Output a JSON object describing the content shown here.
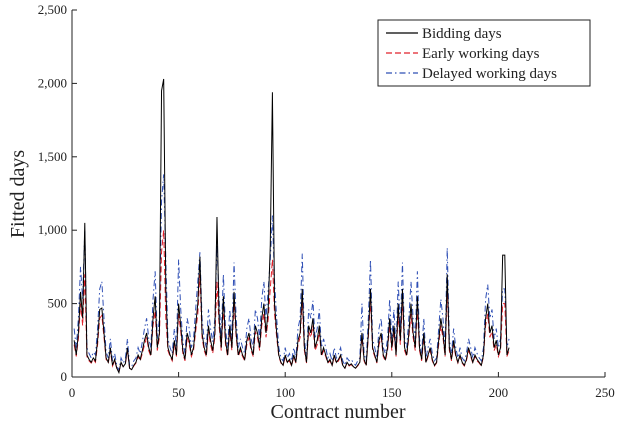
{
  "chart_data": {
    "type": "line",
    "xlabel": "Contract number",
    "ylabel": "Fitted days",
    "xlim": [
      0,
      250
    ],
    "xticks": [
      0,
      50,
      100,
      150,
      200,
      250
    ],
    "ylim": [
      0,
      2500
    ],
    "yticks": [
      0,
      500,
      {
        "value": 1000,
        "label": "1,000"
      },
      {
        "value": 1500,
        "label": "1,500"
      },
      {
        "value": 2000,
        "label": "2,000"
      },
      {
        "value": 2500,
        "label": "2,500"
      }
    ],
    "legend": "upper right",
    "x": [
      1,
      2,
      3,
      4,
      5,
      6,
      7,
      8,
      9,
      10,
      11,
      12,
      13,
      14,
      15,
      16,
      17,
      18,
      19,
      20,
      21,
      22,
      23,
      24,
      25,
      26,
      27,
      28,
      29,
      30,
      31,
      32,
      33,
      34,
      35,
      36,
      37,
      38,
      39,
      40,
      41,
      42,
      43,
      44,
      45,
      46,
      47,
      48,
      49,
      50,
      51,
      52,
      53,
      54,
      55,
      56,
      57,
      58,
      59,
      60,
      61,
      62,
      63,
      64,
      65,
      66,
      67,
      68,
      69,
      70,
      71,
      72,
      73,
      74,
      75,
      76,
      77,
      78,
      79,
      80,
      81,
      82,
      83,
      84,
      85,
      86,
      87,
      88,
      89,
      90,
      91,
      92,
      93,
      94,
      95,
      96,
      97,
      98,
      99,
      100,
      101,
      102,
      103,
      104,
      105,
      106,
      107,
      108,
      109,
      110,
      111,
      112,
      113,
      114,
      115,
      116,
      117,
      118,
      119,
      120,
      121,
      122,
      123,
      124,
      125,
      126,
      127,
      128,
      129,
      130,
      131,
      132,
      133,
      134,
      135,
      136,
      137,
      138,
      139,
      140,
      141,
      142,
      143,
      144,
      145,
      146,
      147,
      148,
      149,
      150,
      151,
      152,
      153,
      154,
      155,
      156,
      157,
      158,
      159,
      160,
      161,
      162,
      163,
      164,
      165,
      166,
      167,
      168,
      169,
      170,
      171,
      172,
      173,
      174,
      175,
      176,
      177,
      178,
      179,
      180,
      181,
      182,
      183,
      184,
      185,
      186,
      187,
      188,
      189,
      190,
      191,
      192,
      193,
      194,
      195,
      196,
      197,
      198,
      199,
      200,
      201,
      202,
      203,
      204,
      205
    ],
    "series": [
      {
        "name": "Bidding days",
        "color": "#000000",
        "dash": "solid",
        "values": [
          250,
          150,
          300,
          580,
          400,
          1050,
          150,
          120,
          100,
          130,
          110,
          250,
          460,
          470,
          300,
          130,
          100,
          200,
          80,
          120,
          60,
          30,
          100,
          70,
          90,
          200,
          60,
          50,
          80,
          100,
          150,
          120,
          180,
          250,
          300,
          200,
          150,
          400,
          550,
          200,
          300,
          1950,
          2030,
          600,
          200,
          150,
          120,
          250,
          150,
          500,
          350,
          180,
          120,
          300,
          250,
          150,
          200,
          350,
          500,
          820,
          300,
          200,
          150,
          350,
          250,
          180,
          300,
          1090,
          400,
          200,
          550,
          250,
          150,
          350,
          200,
          580,
          300,
          150,
          200,
          150,
          120,
          250,
          300,
          200,
          150,
          350,
          300,
          200,
          400,
          500,
          300,
          450,
          900,
          1940,
          500,
          300,
          150,
          100,
          80,
          150,
          100,
          120,
          80,
          150,
          100,
          250,
          300,
          600,
          200,
          100,
          350,
          300,
          400,
          200,
          250,
          350,
          150,
          200,
          150,
          100,
          120,
          80,
          150,
          100,
          120,
          150,
          80,
          60,
          100,
          80,
          90,
          70,
          60,
          80,
          100,
          300,
          120,
          80,
          300,
          600,
          200,
          150,
          100,
          250,
          300,
          150,
          120,
          200,
          400,
          200,
          350,
          150,
          500,
          250,
          600,
          200,
          150,
          300,
          500,
          300,
          200,
          550,
          200,
          120,
          300,
          100,
          150,
          200,
          120,
          80,
          100,
          250,
          400,
          300,
          150,
          700,
          200,
          120,
          250,
          150,
          100,
          150,
          100,
          80,
          120,
          200,
          150,
          100,
          150,
          120,
          100,
          80,
          150,
          400,
          500,
          300,
          350,
          200,
          250,
          150,
          200,
          830,
          830,
          150,
          200
        ]
      },
      {
        "name": "Early working days",
        "color": "#e0202a",
        "dash": "dashed",
        "values": [
          220,
          140,
          260,
          500,
          350,
          700,
          140,
          110,
          95,
          120,
          100,
          220,
          400,
          420,
          270,
          120,
          95,
          180,
          75,
          110,
          60,
          35,
          95,
          70,
          85,
          180,
          60,
          50,
          75,
          95,
          140,
          110,
          160,
          220,
          270,
          180,
          140,
          350,
          450,
          180,
          270,
          850,
          1000,
          400,
          180,
          140,
          110,
          220,
          140,
          430,
          310,
          160,
          110,
          270,
          220,
          140,
          180,
          310,
          430,
          700,
          270,
          180,
          140,
          310,
          220,
          160,
          270,
          650,
          350,
          180,
          470,
          220,
          140,
          310,
          180,
          500,
          270,
          140,
          180,
          140,
          110,
          220,
          270,
          180,
          140,
          310,
          270,
          180,
          350,
          430,
          270,
          390,
          600,
          800,
          430,
          270,
          140,
          95,
          75,
          140,
          95,
          110,
          75,
          140,
          95,
          220,
          270,
          520,
          180,
          95,
          310,
          270,
          350,
          180,
          220,
          310,
          140,
          180,
          140,
          95,
          110,
          75,
          140,
          95,
          110,
          140,
          75,
          60,
          95,
          75,
          85,
          65,
          60,
          75,
          95,
          270,
          110,
          75,
          270,
          520,
          180,
          140,
          95,
          220,
          270,
          140,
          110,
          180,
          350,
          180,
          310,
          140,
          430,
          220,
          520,
          180,
          140,
          270,
          430,
          270,
          180,
          470,
          180,
          110,
          270,
          95,
          140,
          180,
          110,
          75,
          95,
          220,
          350,
          270,
          140,
          600,
          180,
          110,
          220,
          140,
          95,
          140,
          95,
          75,
          110,
          180,
          140,
          95,
          140,
          110,
          95,
          75,
          140,
          350,
          430,
          270,
          310,
          180,
          220,
          140,
          180,
          500,
          500,
          140,
          180
        ]
      },
      {
        "name": "Delayed working days",
        "color": "#2f4fb5",
        "dash": "dashdot",
        "values": [
          330,
          200,
          400,
          750,
          530,
          1000,
          200,
          160,
          130,
          170,
          150,
          330,
          600,
          650,
          400,
          170,
          130,
          260,
          110,
          160,
          80,
          45,
          130,
          95,
          120,
          260,
          80,
          70,
          110,
          130,
          200,
          160,
          240,
          330,
          400,
          260,
          200,
          530,
          720,
          260,
          400,
          1200,
          1380,
          800,
          260,
          200,
          160,
          330,
          200,
          800,
          460,
          240,
          160,
          400,
          330,
          200,
          260,
          460,
          650,
          850,
          400,
          260,
          200,
          460,
          330,
          240,
          400,
          900,
          530,
          260,
          700,
          330,
          200,
          460,
          260,
          780,
          400,
          200,
          260,
          200,
          160,
          330,
          400,
          260,
          200,
          460,
          400,
          260,
          530,
          650,
          400,
          590,
          800,
          1100,
          650,
          400,
          200,
          130,
          110,
          200,
          130,
          160,
          110,
          200,
          130,
          330,
          400,
          840,
          260,
          130,
          460,
          400,
          520,
          260,
          330,
          460,
          200,
          260,
          200,
          130,
          160,
          110,
          200,
          130,
          160,
          200,
          110,
          80,
          130,
          110,
          120,
          95,
          80,
          110,
          130,
          500,
          160,
          110,
          400,
          800,
          260,
          200,
          130,
          330,
          400,
          200,
          160,
          260,
          530,
          260,
          460,
          200,
          650,
          330,
          780,
          260,
          200,
          400,
          650,
          400,
          260,
          720,
          260,
          160,
          400,
          130,
          200,
          260,
          160,
          110,
          130,
          330,
          530,
          400,
          200,
          880,
          260,
          160,
          330,
          200,
          130,
          200,
          130,
          110,
          160,
          260,
          200,
          130,
          200,
          160,
          130,
          110,
          200,
          530,
          630,
          400,
          460,
          260,
          330,
          200,
          260,
          600,
          600,
          200,
          260
        ]
      }
    ]
  }
}
